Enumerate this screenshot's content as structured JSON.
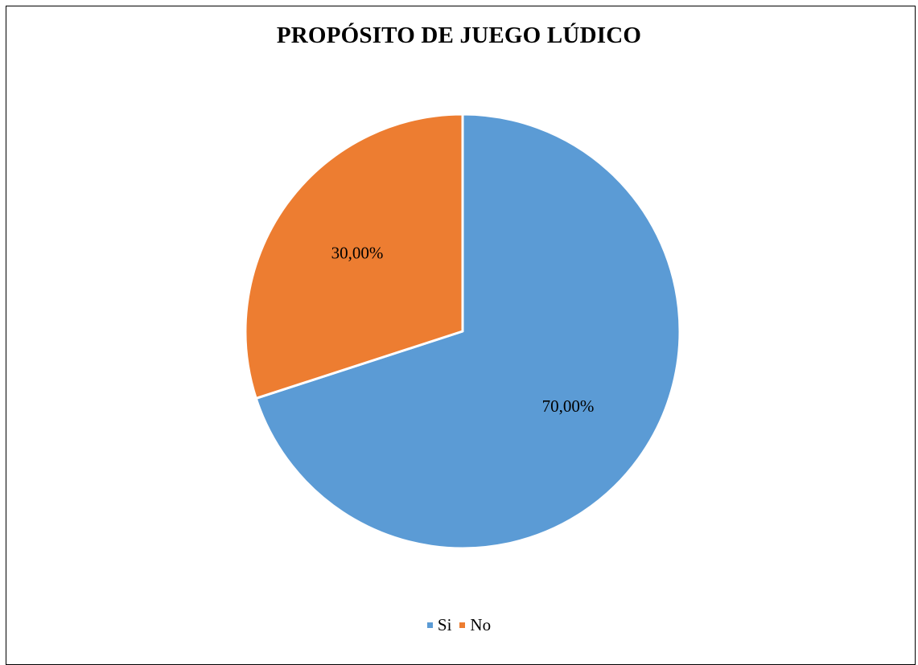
{
  "chart_data": {
    "type": "pie",
    "title": "PROPÓSITO DE JUEGO LÚDICO",
    "categories": [
      "Si",
      "No"
    ],
    "values": [
      70,
      30
    ],
    "data_labels": [
      "70,00%",
      "30,00%"
    ],
    "colors": [
      "#5B9BD5",
      "#ED7D31"
    ],
    "legend_position": "bottom"
  }
}
